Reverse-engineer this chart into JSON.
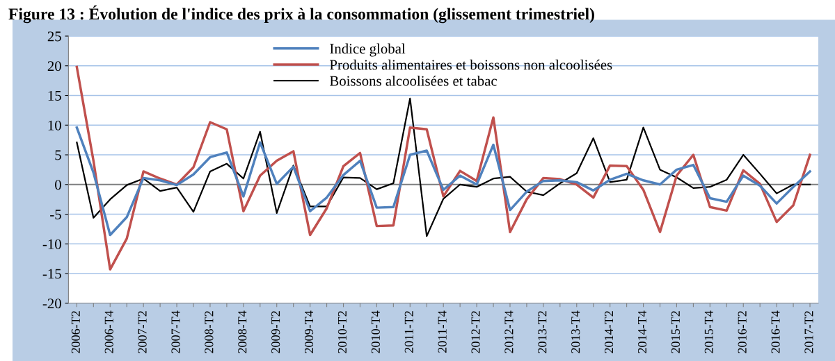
{
  "chart_data": {
    "type": "line",
    "title": "Figure 13 : Évolution de l'indice des prix à la consommation (glissement trimestriel)",
    "categories": [
      "2006-T2",
      null,
      "2006-T4",
      null,
      "2007-T2",
      null,
      "2007-T4",
      null,
      "2008-T2",
      null,
      "2008-T4",
      null,
      "2009-T2",
      null,
      "2009-T4",
      null,
      "2010-T2",
      null,
      "2010-T4",
      null,
      "2011-T2",
      null,
      "2011-T4",
      null,
      "2012-T2",
      null,
      "2012-T4",
      null,
      "2013-T2",
      null,
      "2013-T4",
      null,
      "2014-T2",
      null,
      "2014-T4",
      null,
      "2015-T2",
      null,
      "2015-T4",
      null,
      "2016-T2",
      null,
      "2016-T4",
      null,
      "2017-T2"
    ],
    "series": [
      {
        "name": "Indice global",
        "color": "#4f81bd",
        "values": [
          9.6,
          2,
          -8.5,
          -5.5,
          1.1,
          0.7,
          -0.1,
          1.7,
          4.6,
          5.4,
          -2,
          7.1,
          0.1,
          3.0,
          -4.5,
          -2.2,
          1.6,
          4.0,
          -3.9,
          -3.8,
          5.0,
          5.7,
          -0.9,
          1.5,
          0,
          6.7,
          -4.3,
          -1.2,
          0.6,
          0.7,
          0.4,
          -1.0,
          0.8,
          1.8,
          0.7,
          0,
          2.5,
          3.3,
          -2.3,
          -2.9,
          1.5,
          -0.2,
          -3.2,
          -0.4,
          2.2
        ]
      },
      {
        "name": "Produits alimentaires et boissons non alcoolisées",
        "color": "#c0504d",
        "values": [
          19.8,
          4,
          -14.3,
          -9.1,
          2.2,
          1.0,
          0,
          2.9,
          10.5,
          9.3,
          -4.5,
          1.5,
          4.0,
          5.6,
          -8.5,
          -4.0,
          3.1,
          5.3,
          -7.0,
          -6.9,
          9.6,
          9.3,
          -2,
          2.3,
          0.6,
          11.3,
          -8,
          -2.5,
          1.1,
          0.9,
          0,
          -2.2,
          3.2,
          3.1,
          -0.9,
          -8.0,
          1.5,
          5.0,
          -3.8,
          -4.4,
          2.4,
          0.1,
          -6.3,
          -3.5,
          5.0
        ]
      },
      {
        "name": "Boissons alcoolisées et tabac",
        "color": "#000000",
        "values": [
          7.1,
          -5.6,
          -2.5,
          -0.1,
          1.0,
          -1.1,
          -0.5,
          -4.6,
          2.2,
          3.5,
          1.0,
          8.9,
          -4.8,
          3.2,
          -3.7,
          -3.7,
          1.2,
          1.1,
          -0.8,
          0.2,
          14.5,
          -8.7,
          -2.4,
          0,
          -0.4,
          1.0,
          1.3,
          -1.2,
          -1.8,
          0.2,
          1.9,
          7.8,
          0.4,
          0.8,
          9.6,
          2.5,
          1.2,
          -0.6,
          -0.4,
          0.8,
          5.0,
          1.8,
          -1.5,
          0,
          0
        ]
      }
    ],
    "ylim": [
      -20,
      25
    ],
    "yticks": [
      -20,
      -15,
      -10,
      -5,
      0,
      5,
      10,
      15,
      20,
      25
    ],
    "grid": "y",
    "legend": "top",
    "marker": "none",
    "line_style": "solid"
  }
}
